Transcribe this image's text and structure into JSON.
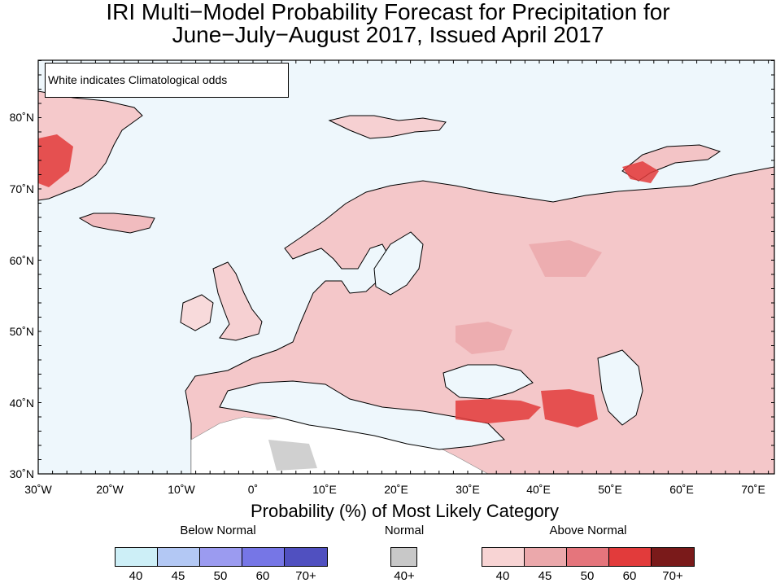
{
  "title": {
    "line1": "IRI Multi−Model Probability Forecast for Precipitation for",
    "line2": "June−July−August 2017, Issued April 2017"
  },
  "note": "White indicates Climatological odds",
  "axes": {
    "lat_labels": [
      "80˚N",
      "70˚N",
      "60˚N",
      "50˚N",
      "40˚N",
      "30˚N"
    ],
    "lon_labels": [
      "30˚W",
      "20˚W",
      "10˚W",
      "0˚",
      "10˚E",
      "20˚E",
      "30˚E",
      "40˚E",
      "50˚E",
      "60˚E",
      "70˚E"
    ]
  },
  "colorbar": {
    "title": "Probability (%) of Most Likely Category",
    "below": {
      "label": "Below Normal",
      "ticks": [
        "40",
        "45",
        "50",
        "60",
        "70+"
      ],
      "colors": [
        "#cdeff7",
        "#b3c8f4",
        "#9b9bf0",
        "#7676e6",
        "#5050c0"
      ]
    },
    "normal": {
      "label": "Normal",
      "ticks": [
        "40+"
      ],
      "colors": [
        "#c8c8c8"
      ]
    },
    "above": {
      "label": "Above Normal",
      "ticks": [
        "40",
        "45",
        "50",
        "60",
        "70+"
      ],
      "colors": [
        "#f8d4d4",
        "#eba8ab",
        "#e5757c",
        "#e23b3b",
        "#7a1a1a"
      ]
    }
  },
  "map": {
    "region": "Europe",
    "lon_range": [
      -30,
      72
    ],
    "lat_range": [
      30,
      88
    ],
    "ocean_color": "#eef7fc",
    "land_color": "#ffffff",
    "category": "Above Normal"
  }
}
